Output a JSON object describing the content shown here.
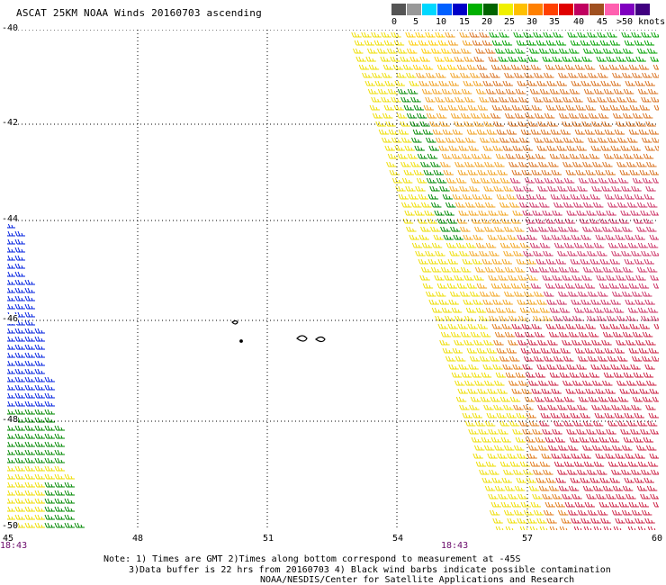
{
  "title": "ASCAT 25KM NOAA Winds 20160703 ascending",
  "legend": {
    "colors": [
      "#555555",
      "#999999",
      "#00d8ff",
      "#0060ff",
      "#0000c8",
      "#00b000",
      "#006400",
      "#f0f000",
      "#ffc000",
      "#ff8000",
      "#ff4000",
      "#e00000",
      "#c00060",
      "#a05020",
      "#ff60b0",
      "#8000c0",
      "#400080"
    ],
    "labels": [
      "0",
      "5",
      "10",
      "15",
      "20",
      "25",
      "30",
      "35",
      "40",
      "45",
      ">50 knots"
    ]
  },
  "axes": {
    "lat_labels": [
      "-40",
      "-42",
      "-44",
      "-46",
      "-48",
      "-50"
    ],
    "lon_labels": [
      "45",
      "48",
      "51",
      "54",
      "57",
      "60"
    ],
    "time_labels": [
      "18:43",
      "18:43"
    ]
  },
  "notes": [
    "Note: 1) Times are GMT 2)Times along bottom correspond to measurement at -45S",
    "3)Data buffer is 22 hrs from 20160703 4) Black wind barbs indicate possible contamination",
    "NOAA/NESDIS/Center for Satellite Applications and Research"
  ]
}
